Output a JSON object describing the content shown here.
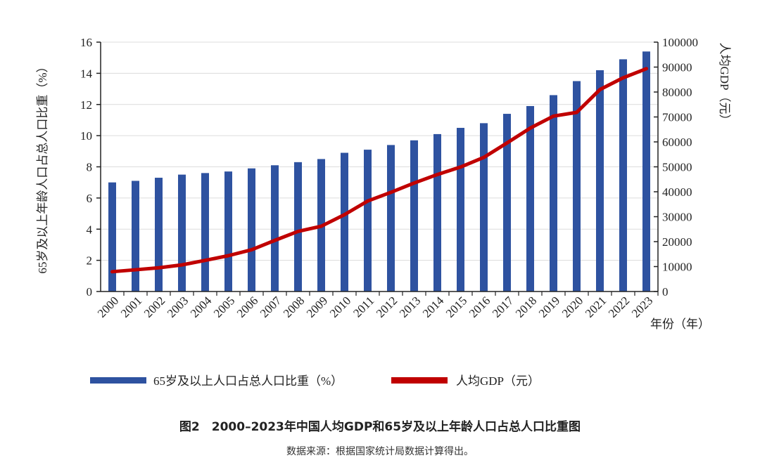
{
  "chart_data": {
    "type": "bar+line",
    "title": "图2　2000–2023年中国人均GDP和65岁及以上年龄人口占总人口比重图",
    "source": "数据来源：根据国家统计局数据计算得出。",
    "xlabel": "年份（年）",
    "ylabel_left": "65岁及以上年龄人口占总人口比重（%）",
    "ylabel_right": "人均GDP（元）",
    "ylim_left": [
      0,
      16
    ],
    "yticks_left": [
      0,
      2,
      4,
      6,
      8,
      10,
      12,
      14,
      16
    ],
    "ylim_right": [
      0,
      100000
    ],
    "yticks_right": [
      0,
      10000,
      20000,
      30000,
      40000,
      50000,
      60000,
      70000,
      80000,
      90000,
      100000
    ],
    "grid": true,
    "legend_position": "bottom",
    "categories": [
      "2000",
      "2001",
      "2002",
      "2003",
      "2004",
      "2005",
      "2006",
      "2007",
      "2008",
      "2009",
      "2010",
      "2011",
      "2012",
      "2013",
      "2014",
      "2015",
      "2016",
      "2017",
      "2018",
      "2019",
      "2020",
      "2021",
      "2022",
      "2023"
    ],
    "series": [
      {
        "name": "65岁及以上人口占总人口比重（%）",
        "type": "bar",
        "axis": "left",
        "color": "#2e52a0",
        "values": [
          7.0,
          7.1,
          7.3,
          7.5,
          7.6,
          7.7,
          7.9,
          8.1,
          8.3,
          8.5,
          8.9,
          9.1,
          9.4,
          9.7,
          10.1,
          10.5,
          10.8,
          11.4,
          11.9,
          12.6,
          13.5,
          14.2,
          14.9,
          15.4
        ]
      },
      {
        "name": "人均GDP（元）",
        "type": "line",
        "axis": "right",
        "color": "#c00000",
        "values": [
          7942,
          8717,
          9506,
          10666,
          12487,
          14368,
          16738,
          20494,
          24100,
          26180,
          30808,
          36277,
          39771,
          43497,
          46912,
          49922,
          53783,
          59592,
          65534,
          70328,
          71828,
          80976,
          85698,
          89358
        ]
      }
    ]
  }
}
